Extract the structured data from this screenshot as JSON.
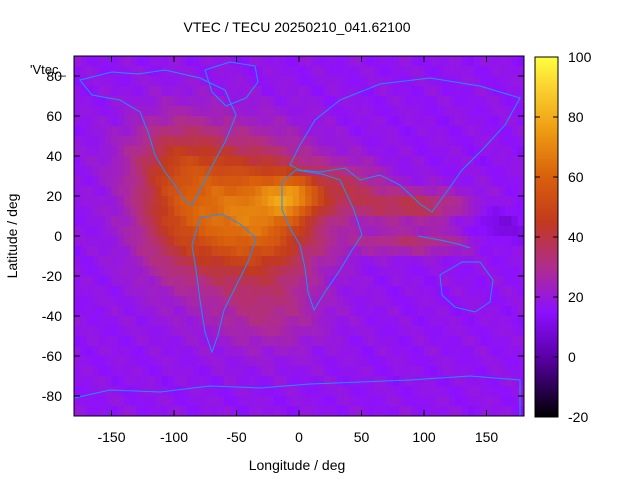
{
  "chart_data": {
    "type": "heatmap",
    "title": "VTEC / TECU 20250210_041.62100",
    "xlabel": "Longitude / deg",
    "ylabel": "Latitude / deg",
    "legend_key": "'Vtec_",
    "xlim": [
      -180,
      180
    ],
    "ylim": [
      -90,
      90
    ],
    "x_ticks": [
      -150,
      -100,
      -50,
      0,
      50,
      100,
      150
    ],
    "y_ticks": [
      -80,
      -60,
      -40,
      -20,
      0,
      20,
      40,
      60,
      80
    ],
    "colorbar": {
      "range": [
        -20,
        100
      ],
      "ticks": [
        -20,
        0,
        20,
        40,
        60,
        80,
        100
      ],
      "stops": [
        {
          "value": -20,
          "color": "#000000"
        },
        {
          "value": 0,
          "color": "#5a00a8"
        },
        {
          "value": 15,
          "color": "#8c10ff"
        },
        {
          "value": 30,
          "color": "#b02d8c"
        },
        {
          "value": 45,
          "color": "#c23a1e"
        },
        {
          "value": 60,
          "color": "#d9600c"
        },
        {
          "value": 75,
          "color": "#ee9a12"
        },
        {
          "value": 90,
          "color": "#fad330"
        },
        {
          "value": 100,
          "color": "#ffff40"
        }
      ]
    },
    "background_vtec": 17,
    "vtec_features": [
      {
        "lon": -35,
        "lat": 10,
        "slon": 50,
        "slat": 32,
        "amp": 48
      },
      {
        "lon": -5,
        "lat": 20,
        "slon": 22,
        "slat": 10,
        "amp": 28
      },
      {
        "lon": -95,
        "lat": 15,
        "slon": 38,
        "slat": 35,
        "amp": 26
      },
      {
        "lon": -25,
        "lat": -40,
        "slon": 45,
        "slat": 18,
        "amp": 10
      },
      {
        "lon": 90,
        "lat": 15,
        "slon": 45,
        "slat": 8,
        "amp": 22
      },
      {
        "lon": 90,
        "lat": -3,
        "slon": 50,
        "slat": 6,
        "amp": 16
      },
      {
        "lon": 40,
        "lat": 25,
        "slon": 30,
        "slat": 12,
        "amp": 15
      },
      {
        "lon": 160,
        "lat": 5,
        "slon": 25,
        "slat": 10,
        "amp": -8
      },
      {
        "lon": -100,
        "lat": 40,
        "slon": 45,
        "slat": 20,
        "amp": 10
      }
    ]
  }
}
